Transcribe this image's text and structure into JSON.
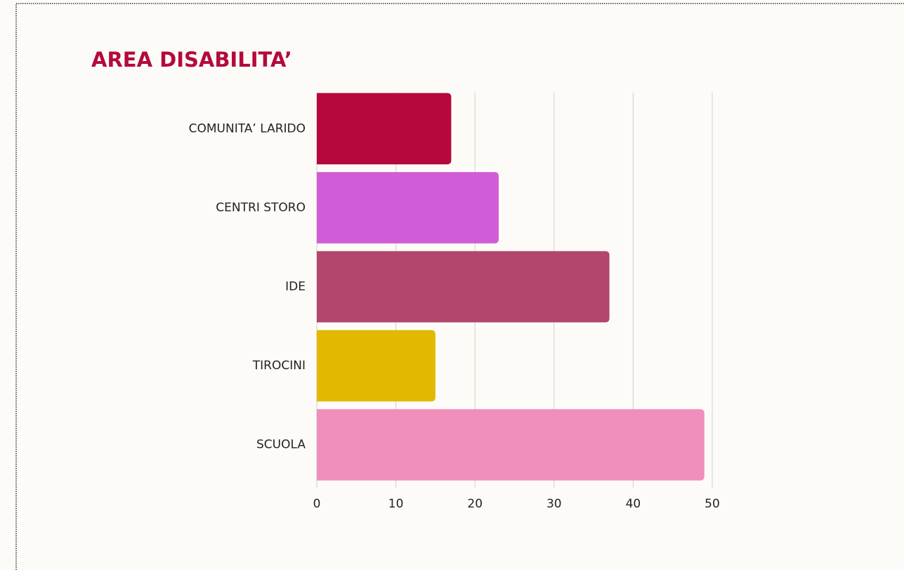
{
  "chart_data": {
    "type": "bar",
    "orientation": "horizontal",
    "title": "AREA DISABILITA’",
    "categories": [
      "COMUNITA’ LARIDO",
      "CENTRI STORO",
      "IDE",
      "TIROCINI",
      "SCUOLA"
    ],
    "values": [
      17,
      23,
      37,
      15,
      49
    ],
    "colors": [
      "#b5093e",
      "#d15cd8",
      "#b2466e",
      "#e2b900",
      "#f08fbb"
    ],
    "xlim": [
      0,
      50
    ],
    "xticks": [
      0,
      10,
      20,
      30,
      40,
      50
    ],
    "grid": true
  }
}
